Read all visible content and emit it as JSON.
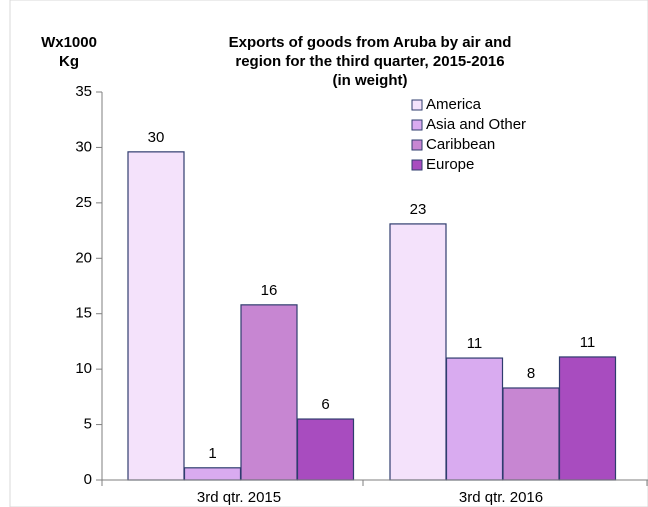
{
  "chart_data": {
    "type": "bar",
    "title_lines": [
      "Exports of goods from Aruba by air and",
      "region for the third quarter, 2015-2016",
      "(in weight)"
    ],
    "ylabel_lines": [
      "Wx1000",
      "Kg"
    ],
    "categories": [
      "3rd qtr. 2015",
      "3rd qtr. 2016"
    ],
    "series": [
      {
        "name": "America",
        "color": "#f4e2fb",
        "values": [
          29.6,
          23.1
        ],
        "value_labels": [
          "30",
          "23"
        ]
      },
      {
        "name": "Asia and Other",
        "color": "#d9abf0",
        "values": [
          1.1,
          11
        ],
        "value_labels": [
          "1",
          "11"
        ]
      },
      {
        "name": "Caribbean",
        "color": "#c786d2",
        "values": [
          15.8,
          8.3
        ],
        "value_labels": [
          "16",
          "8"
        ]
      },
      {
        "name": "Europe",
        "color": "#a84cbf",
        "values": [
          5.5,
          11.1
        ],
        "value_labels": [
          "6",
          "11"
        ]
      }
    ],
    "ylim": [
      0,
      35
    ],
    "yticks": [
      0,
      5,
      10,
      15,
      20,
      25,
      30,
      35
    ],
    "legend": "upper right"
  }
}
